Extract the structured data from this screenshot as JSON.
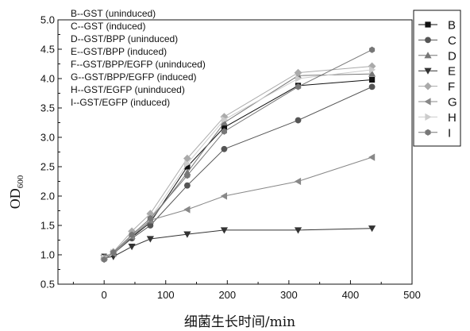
{
  "chart_data": {
    "type": "line",
    "xlabel": "细菌生长时间/min",
    "ylabel_main": "OD",
    "ylabel_sub": "600",
    "xlim": [
      -75,
      500
    ],
    "ylim": [
      0.5,
      5.0
    ],
    "xticks": [
      0,
      100,
      200,
      300,
      400,
      500
    ],
    "yticks": [
      0.5,
      1.0,
      1.5,
      2.0,
      2.5,
      3.0,
      3.5,
      4.0,
      4.5,
      5.0
    ],
    "x": [
      0,
      15,
      45,
      75,
      135,
      195,
      315,
      435
    ],
    "annotations": [
      "B--GST (uninduced)",
      "C--GST (induced)",
      "D--GST/BPP (uninduced)",
      "E--GST/BPP (induced)",
      "F--GST/BPP/EGFP (uninduced)",
      "G--GST/BPP/EGFP (induced)",
      "H--GST/EGFP (uninduced)",
      "I--GST/EGFP (induced)"
    ],
    "legend_placement": "top-right",
    "series": [
      {
        "name": "B",
        "marker": "square",
        "color": "#111111",
        "values": [
          0.97,
          1.03,
          1.3,
          1.55,
          2.5,
          3.17,
          3.88,
          3.98
        ]
      },
      {
        "name": "C",
        "marker": "circle",
        "color": "#555555",
        "values": [
          0.95,
          1.02,
          1.28,
          1.5,
          2.18,
          2.8,
          3.29,
          3.86
        ]
      },
      {
        "name": "D",
        "marker": "triangle-up",
        "color": "#777777",
        "values": [
          0.96,
          1.03,
          1.32,
          1.58,
          2.4,
          3.25,
          4.05,
          4.08
        ]
      },
      {
        "name": "E",
        "marker": "triangle-down",
        "color": "#333333",
        "values": [
          0.95,
          0.97,
          1.14,
          1.27,
          1.35,
          1.42,
          1.42,
          1.45
        ]
      },
      {
        "name": "F",
        "marker": "diamond",
        "color": "#aaaaaa",
        "values": [
          0.93,
          1.05,
          1.4,
          1.7,
          2.64,
          3.35,
          4.1,
          4.21
        ]
      },
      {
        "name": "G",
        "marker": "triangle-left",
        "color": "#888888",
        "values": [
          0.96,
          1.02,
          1.31,
          1.59,
          1.77,
          2.0,
          2.25,
          2.66
        ]
      },
      {
        "name": "H",
        "marker": "triangle-right",
        "color": "#cccccc",
        "values": [
          0.95,
          1.04,
          1.33,
          1.62,
          2.55,
          3.3,
          4.0,
          4.15
        ]
      },
      {
        "name": "I",
        "marker": "hexagon",
        "color": "#777777",
        "values": [
          0.92,
          1.04,
          1.34,
          1.62,
          2.35,
          3.1,
          3.86,
          4.49
        ]
      }
    ]
  }
}
